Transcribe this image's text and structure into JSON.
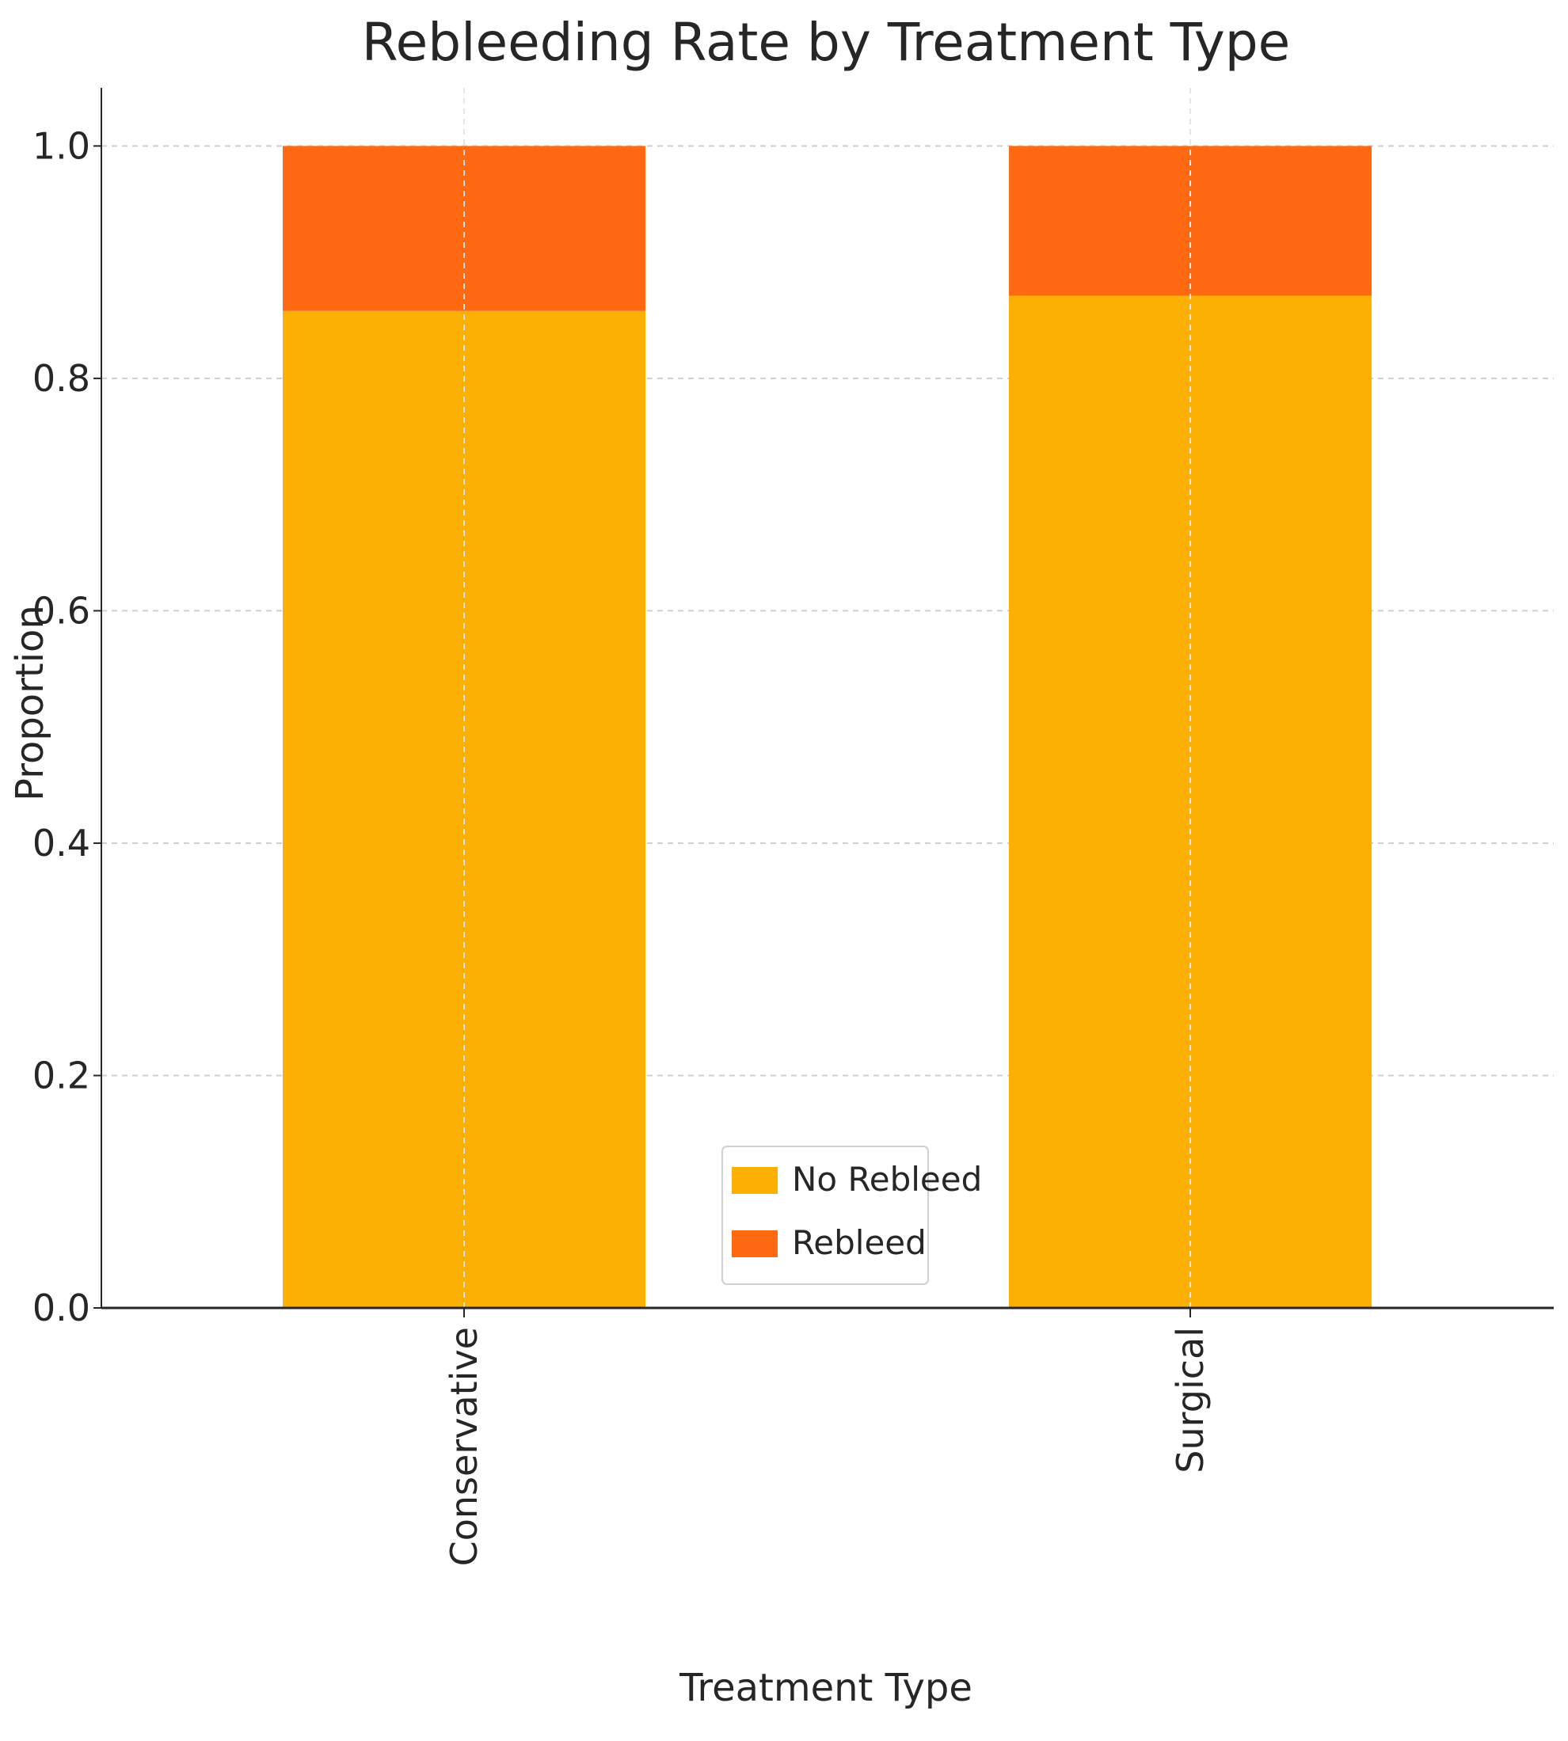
{
  "chart_data": {
    "type": "bar",
    "stacked": true,
    "title": "Rebleeding Rate by Treatment Type",
    "xlabel": "Treatment Type",
    "ylabel": "Proportion",
    "categories": [
      "Conservative",
      "Surgical"
    ],
    "series": [
      {
        "name": "No Rebleed",
        "values": [
          0.858,
          0.871
        ],
        "color": "#FCB004"
      },
      {
        "name": "Rebleed",
        "values": [
          0.142,
          0.129
        ],
        "color": "#FE6912"
      }
    ],
    "ylim": [
      0,
      1.05
    ],
    "yticks": [
      "0.0",
      "0.2",
      "0.4",
      "0.6",
      "0.8",
      "1.0"
    ],
    "grid": true,
    "legend_position": "bottom-center"
  }
}
